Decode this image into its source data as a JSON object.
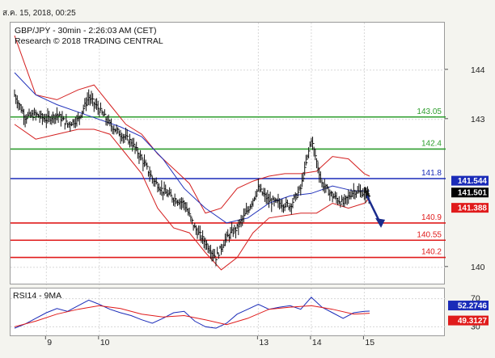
{
  "header": {
    "timestamp": "ส.ค. 15, 2018, 00:25"
  },
  "chart_data": [
    {
      "type": "line",
      "title": "GBP/JPY - 30min - 2:26:03 AM (CET)",
      "subtitle": "Research © 2018 TRADING CENTRAL",
      "ylim": [
        139.8,
        144.8
      ],
      "y_ticks": [
        "144",
        "143",
        "140"
      ],
      "y_tick_values": [
        144,
        143,
        140
      ],
      "x_ticks": [
        "9",
        "10",
        "13",
        "14",
        "15"
      ],
      "x_tick_values": [
        9,
        10,
        13,
        14,
        15
      ],
      "xlim": [
        8.4,
        15.65
      ],
      "grid": true,
      "levels": [
        {
          "label": "143.05",
          "value": 143.05,
          "color": "#2e9e2e",
          "kind": "resistance"
        },
        {
          "label": "142.4",
          "value": 142.4,
          "color": "#2e9e2e",
          "kind": "resistance"
        },
        {
          "label": "141.8",
          "value": 141.8,
          "color": "#1a2bb8",
          "kind": "pivot"
        },
        {
          "label": "140.9",
          "value": 140.9,
          "color": "#e01b1b",
          "kind": "support"
        },
        {
          "label": "140.55",
          "value": 140.55,
          "color": "#e01b1b",
          "kind": "support"
        },
        {
          "label": "140.2",
          "value": 140.2,
          "color": "#e01b1b",
          "kind": "support"
        }
      ],
      "price_badges": [
        {
          "label": "141.544",
          "value": 141.544,
          "bg": "#1a2bb8",
          "fg": "#ffffff"
        },
        {
          "label": "141.501",
          "value": 141.501,
          "bg": "#000000",
          "fg": "#ffffff"
        },
        {
          "label": "141.388",
          "value": 141.388,
          "bg": "#e01b1b",
          "fg": "#ffffff"
        }
      ],
      "close_series": {
        "x": [
          8.4,
          8.6,
          8.8,
          9.0,
          9.2,
          9.4,
          9.6,
          9.8,
          10.0,
          10.2,
          10.4,
          10.6,
          10.8,
          11.0,
          11.2,
          11.4,
          11.6,
          11.8,
          12.0,
          12.2,
          12.4,
          12.6,
          12.8,
          13.0,
          13.2,
          13.4,
          13.6,
          13.8,
          14.0,
          14.2,
          14.4,
          14.6,
          14.8,
          15.0,
          15.1
        ],
        "values": [
          143.5,
          143.05,
          143.1,
          143.0,
          143.1,
          142.9,
          143.0,
          143.45,
          143.2,
          142.9,
          142.7,
          142.55,
          142.2,
          141.8,
          141.55,
          141.4,
          141.3,
          140.8,
          140.5,
          140.2,
          140.6,
          140.8,
          141.15,
          141.6,
          141.35,
          141.3,
          141.25,
          141.6,
          142.6,
          141.7,
          141.45,
          141.3,
          141.55,
          141.5,
          141.5
        ]
      },
      "bollinger_upper": {
        "x": [
          8.4,
          8.8,
          9.2,
          9.6,
          9.9,
          10.2,
          10.5,
          10.8,
          11.1,
          11.4,
          11.7,
          12.0,
          12.3,
          12.6,
          12.9,
          13.2,
          13.5,
          13.8,
          14.1,
          14.4,
          14.7,
          15.0,
          15.1
        ],
        "values": [
          144.7,
          143.5,
          143.4,
          143.6,
          143.7,
          143.3,
          142.9,
          142.7,
          142.3,
          142.0,
          141.7,
          141.1,
          141.2,
          141.6,
          141.75,
          141.85,
          141.9,
          141.9,
          141.95,
          142.25,
          142.2,
          141.9,
          141.85
        ]
      },
      "bollinger_lower": {
        "x": [
          8.4,
          8.8,
          9.2,
          9.6,
          9.9,
          10.2,
          10.5,
          10.8,
          11.1,
          11.4,
          11.7,
          12.0,
          12.3,
          12.6,
          12.9,
          13.2,
          13.5,
          13.8,
          14.1,
          14.4,
          14.7,
          15.0,
          15.1
        ],
        "values": [
          142.9,
          142.6,
          142.7,
          142.8,
          142.8,
          142.7,
          142.3,
          141.9,
          141.2,
          140.8,
          140.7,
          140.3,
          139.95,
          140.2,
          140.7,
          141.0,
          141.05,
          141.1,
          141.1,
          141.3,
          141.2,
          141.3,
          141.4
        ]
      },
      "moving_average": {
        "x": [
          8.4,
          8.8,
          9.2,
          9.6,
          10.0,
          10.4,
          10.8,
          11.2,
          11.6,
          12.0,
          12.4,
          12.8,
          13.2,
          13.6,
          14.0,
          14.4,
          14.8,
          15.1
        ],
        "values": [
          143.95,
          143.5,
          143.3,
          143.15,
          143.0,
          142.85,
          142.65,
          142.2,
          141.6,
          141.2,
          140.9,
          141.0,
          141.3,
          141.45,
          141.5,
          141.65,
          141.55,
          141.55
        ]
      },
      "forecast_arrow": {
        "x": [
          15.05,
          15.3
        ],
        "values": [
          141.45,
          140.9
        ],
        "color": "#1a2b8c"
      }
    },
    {
      "type": "line",
      "title": "RSI14 - 9MA",
      "ylim": [
        20,
        80
      ],
      "y_ticks": [
        "70",
        "30"
      ],
      "y_tick_values": [
        70,
        30
      ],
      "series": [
        {
          "name": "RSI14",
          "x": [
            8.4,
            8.6,
            8.8,
            9.0,
            9.2,
            9.4,
            9.6,
            9.8,
            10.0,
            10.2,
            10.4,
            10.6,
            10.8,
            11.0,
            11.2,
            11.4,
            11.6,
            11.8,
            12.0,
            12.2,
            12.4,
            12.6,
            12.8,
            13.0,
            13.2,
            13.4,
            13.6,
            13.8,
            14.0,
            14.2,
            14.4,
            14.6,
            14.8,
            15.0,
            15.1
          ],
          "values": [
            28,
            34,
            42,
            50,
            56,
            52,
            60,
            68,
            62,
            55,
            50,
            46,
            40,
            35,
            42,
            50,
            52,
            38,
            30,
            28,
            35,
            48,
            55,
            62,
            55,
            58,
            60,
            55,
            72,
            58,
            50,
            42,
            50,
            52,
            52.2746
          ],
          "color": "#1a2bb8"
        },
        {
          "name": "9MA",
          "x": [
            8.4,
            8.8,
            9.2,
            9.6,
            10.0,
            10.4,
            10.8,
            11.2,
            11.6,
            12.0,
            12.4,
            12.8,
            13.2,
            13.6,
            14.0,
            14.4,
            14.8,
            15.1
          ],
          "values": [
            30,
            38,
            48,
            55,
            60,
            56,
            48,
            44,
            46,
            40,
            33,
            42,
            55,
            58,
            60,
            55,
            48,
            49.3127
          ],
          "color": "#e01b1b"
        }
      ],
      "badges": [
        {
          "label": "52.2746",
          "value": 52.2746,
          "bg": "#1a2bb8",
          "fg": "#ffffff"
        },
        {
          "label": "49.3127",
          "value": 49.3127,
          "bg": "#e01b1b",
          "fg": "#ffffff"
        }
      ]
    }
  ]
}
